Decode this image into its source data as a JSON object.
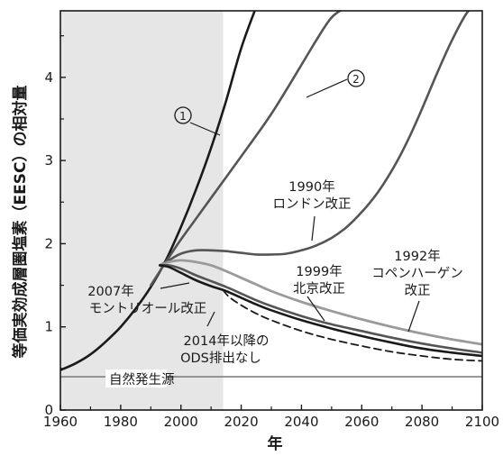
{
  "chart_data": {
    "type": "line",
    "xlabel": "年",
    "ylabel": "等価実効成層圏塩素（EESC）の相対量",
    "xlim": [
      1960,
      2100
    ],
    "ylim": [
      0,
      4.8
    ],
    "x_ticks": [
      "1960",
      "1980",
      "2000",
      "2020",
      "2040",
      "2060",
      "2080",
      "2100"
    ],
    "y_ticks": [
      "0",
      "1",
      "2",
      "3",
      "4"
    ],
    "x_tick_values": [
      1960,
      1980,
      2000,
      2020,
      2040,
      2060,
      2080,
      2100
    ],
    "y_tick_values": [
      0,
      1,
      2,
      3,
      4
    ],
    "observed_period": [
      1960,
      2014
    ],
    "grid": false,
    "colors": {
      "shade": "#e6e6e6",
      "dark": "#1a1a1a",
      "mid": "#555555",
      "light": "#9a9a9a",
      "baseline": "#808080"
    },
    "baseline": {
      "label": "自然発生源",
      "y": 0.4
    },
    "annotations": {
      "c1": "①",
      "c2": "②",
      "london": [
        "1990年",
        "ロンドン改正"
      ],
      "copenhagen": [
        "1992年",
        "コペンハーゲン",
        "改正"
      ],
      "beijing": [
        "1999年",
        "北京改正"
      ],
      "montreal": [
        "2007年",
        "モントリオール改正"
      ],
      "ods": [
        "2014年以降の",
        "ODS排出なし"
      ]
    },
    "series": [
      {
        "id": "scenario_1",
        "label": "①",
        "style": "dark",
        "x": [
          1960,
          1965,
          1970,
          1975,
          1980,
          1985,
          1990,
          1995,
          2000,
          2005,
          2010,
          2015,
          2020,
          2025
        ],
        "y": [
          0.48,
          0.56,
          0.67,
          0.82,
          1.0,
          1.22,
          1.48,
          1.8,
          2.2,
          2.65,
          3.15,
          3.72,
          4.35,
          4.85
        ]
      },
      {
        "id": "scenario_2",
        "label": "②",
        "style": "mid",
        "x": [
          1990,
          1995,
          2000,
          2005,
          2010,
          2015,
          2020,
          2025,
          2030,
          2035,
          2040,
          2045,
          2050,
          2055
        ],
        "y": [
          1.5,
          1.78,
          2.05,
          2.3,
          2.55,
          2.8,
          3.05,
          3.3,
          3.56,
          3.85,
          4.15,
          4.45,
          4.72,
          4.85
        ]
      },
      {
        "id": "london_1990",
        "label": "1990年ロンドン改正",
        "style": "mid",
        "x": [
          1993,
          1996,
          2000,
          2005,
          2010,
          2015,
          2020,
          2025,
          2030,
          2035,
          2040,
          2045,
          2050,
          2055,
          2060,
          2065,
          2070,
          2075,
          2080,
          2085,
          2090,
          2095,
          2098
        ],
        "y": [
          1.74,
          1.8,
          1.88,
          1.92,
          1.92,
          1.91,
          1.89,
          1.87,
          1.87,
          1.88,
          1.92,
          1.98,
          2.07,
          2.2,
          2.38,
          2.6,
          2.88,
          3.22,
          3.62,
          4.05,
          4.45,
          4.78,
          4.85
        ]
      },
      {
        "id": "copenhagen_1992",
        "label": "1992年コペンハーゲン改正",
        "style": "light",
        "x": [
          1993,
          1996,
          2000,
          2005,
          2010,
          2015,
          2020,
          2025,
          2030,
          2040,
          2050,
          2060,
          2070,
          2080,
          2090,
          2100
        ],
        "y": [
          1.74,
          1.78,
          1.8,
          1.78,
          1.74,
          1.67,
          1.59,
          1.51,
          1.43,
          1.3,
          1.19,
          1.09,
          1.0,
          0.92,
          0.85,
          0.79
        ]
      },
      {
        "id": "beijing_1999",
        "label": "1999年北京改正",
        "style": "mid",
        "x": [
          1993,
          1996,
          2000,
          2005,
          2010,
          2015,
          2020,
          2025,
          2030,
          2040,
          2050,
          2060,
          2070,
          2080,
          2090,
          2100
        ],
        "y": [
          1.74,
          1.74,
          1.7,
          1.62,
          1.55,
          1.48,
          1.4,
          1.32,
          1.25,
          1.13,
          1.03,
          0.95,
          0.87,
          0.8,
          0.74,
          0.69
        ]
      },
      {
        "id": "montreal_2007",
        "label": "2007年モントリオール改正",
        "style": "dark",
        "x": [
          1993,
          1996,
          2000,
          2005,
          2010,
          2015,
          2020,
          2025,
          2030,
          2040,
          2050,
          2060,
          2070,
          2080,
          2090,
          2100
        ],
        "y": [
          1.74,
          1.72,
          1.65,
          1.56,
          1.49,
          1.43,
          1.35,
          1.27,
          1.2,
          1.08,
          0.98,
          0.89,
          0.81,
          0.74,
          0.69,
          0.65
        ]
      },
      {
        "id": "no_ods_after_2014",
        "label": "2014年以降のODS排出なし",
        "style": "dashed",
        "x": [
          2014,
          2016,
          2020,
          2025,
          2030,
          2040,
          2050,
          2060,
          2070,
          2080,
          2090,
          2100
        ],
        "y": [
          1.44,
          1.36,
          1.26,
          1.16,
          1.08,
          0.95,
          0.85,
          0.77,
          0.7,
          0.65,
          0.61,
          0.59
        ]
      }
    ]
  }
}
